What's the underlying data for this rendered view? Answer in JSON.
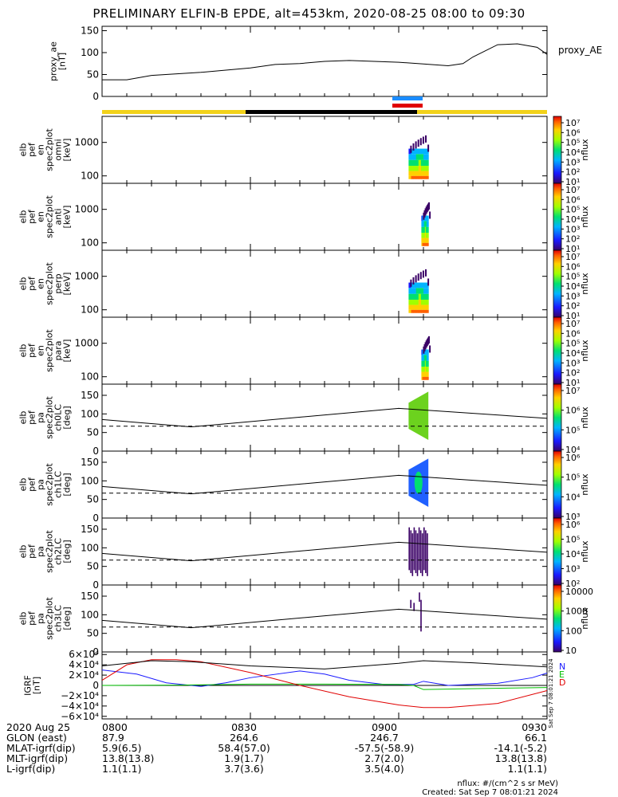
{
  "title": "PRELIMINARY ELFIN-B EPDE, alt=453km, 2020-08-25 08:00 to 09:30",
  "ae_panel": {
    "ylabel": [
      "proxy_ae",
      "[nT]"
    ],
    "yticks": [
      "0",
      "50",
      "100",
      "150"
    ],
    "legend": "proxy_AE"
  },
  "spec_panels": [
    {
      "ylabel": [
        "elb",
        "pef",
        "en",
        "spec2plot",
        "omni",
        "[keV]"
      ]
    },
    {
      "ylabel": [
        "elb",
        "pef",
        "en",
        "spec2plot",
        "anti",
        "[keV]"
      ]
    },
    {
      "ylabel": [
        "elb",
        "pef",
        "en",
        "spec2plot",
        "perp",
        "[keV]"
      ]
    },
    {
      "ylabel": [
        "elb",
        "pef",
        "en",
        "spec2plot",
        "para",
        "[keV]"
      ]
    }
  ],
  "spec_yticks": [
    "100",
    "1000"
  ],
  "lc_panels": [
    {
      "ylabel": [
        "elb",
        "pef",
        "pa",
        "spec2plot",
        "ch0LC",
        "[deg]"
      ]
    },
    {
      "ylabel": [
        "elb",
        "pef",
        "pa",
        "spec2plot",
        "ch1LC",
        "[deg]"
      ]
    },
    {
      "ylabel": [
        "elb",
        "pef",
        "pa",
        "spec2plot",
        "ch2LC",
        "[deg]"
      ]
    },
    {
      "ylabel": [
        "elb",
        "pef",
        "pa",
        "spec2plot",
        "ch3LC",
        "[deg]"
      ]
    }
  ],
  "lc_yticks": [
    "0",
    "50",
    "100",
    "150"
  ],
  "cbar_label": "nflux",
  "cbar_labels_spec": [
    "10⁷",
    "10⁶",
    "10⁵",
    "10⁴",
    "10³",
    "10²",
    "10¹"
  ],
  "cbar_labels_lc": [
    [
      "10⁷",
      "10⁶",
      "10⁵",
      "10⁴"
    ],
    [
      "10⁶",
      "10⁵",
      "10⁴",
      "10³"
    ],
    [
      "10⁶",
      "10⁵",
      "10⁴",
      "10³",
      "10²"
    ],
    [
      "10000",
      "1000",
      "100",
      "10"
    ]
  ],
  "igrf_panel": {
    "ylabel": [
      "IGRF",
      "[nT]"
    ],
    "yticks": [
      "6×10⁴",
      "4×10⁴",
      "2×10⁴",
      "0",
      "−2×10⁴",
      "−4×10⁴",
      "−6×10⁴"
    ],
    "legend": [
      "N",
      "E",
      "D"
    ],
    "side_note": "Sat Sep  7 08:01:21 2024"
  },
  "chart_data": {
    "type": "line",
    "x_time_ticks": [
      "0800",
      "0830",
      "0900",
      "0930"
    ],
    "proxy_ae": {
      "time": [
        "08:00",
        "08:05",
        "08:10",
        "08:20",
        "08:30",
        "08:35",
        "08:40",
        "08:45",
        "08:50",
        "08:55",
        "09:00",
        "09:05",
        "09:10",
        "09:13",
        "09:15",
        "09:20",
        "09:24",
        "09:28",
        "09:30"
      ],
      "values": [
        38,
        38,
        48,
        55,
        65,
        73,
        75,
        80,
        82,
        80,
        78,
        74,
        70,
        75,
        90,
        118,
        120,
        112,
        96
      ],
      "ylim": [
        0,
        160
      ]
    },
    "spectra": {
      "ylabel": "keV",
      "yrange": [
        60,
        6000
      ],
      "yscale": "log",
      "time_range": [
        "09:02",
        "09:06"
      ]
    },
    "loss_cone": {
      "ylim": [
        0,
        180
      ],
      "solid_line": {
        "time": [
          "08:00",
          "08:18",
          "09:00",
          "09:30"
        ],
        "values": [
          85,
          65,
          115,
          88
        ]
      },
      "dashed_line": {
        "value": 67
      }
    },
    "igrf": {
      "ylim": [
        -65000,
        65000
      ],
      "series": [
        {
          "name": "N",
          "color": "#1a1aff",
          "time": [
            "08:00",
            "08:07",
            "08:13",
            "08:20",
            "08:25",
            "08:30",
            "08:40",
            "08:45",
            "08:50",
            "08:57",
            "09:03",
            "09:05",
            "09:10",
            "09:20",
            "09:27",
            "09:30"
          ],
          "values": [
            30000,
            22000,
            5000,
            -2000,
            5000,
            15000,
            28000,
            22000,
            10000,
            2000,
            2000,
            8000,
            0,
            4000,
            15000,
            24000
          ]
        },
        {
          "name": "E",
          "color": "#00c000",
          "time": [
            "08:00",
            "08:15",
            "08:30",
            "08:45",
            "09:00",
            "09:03",
            "09:05",
            "09:30"
          ],
          "values": [
            0,
            500,
            2500,
            2500,
            2000,
            0,
            -8000,
            -4000
          ]
        },
        {
          "name": "D",
          "color": "#e00000",
          "time": [
            "08:00",
            "08:05",
            "08:10",
            "08:15",
            "08:20",
            "08:30",
            "08:40",
            "08:50",
            "09:00",
            "09:05",
            "09:10",
            "09:20",
            "09:30"
          ],
          "values": [
            10000,
            40000,
            50000,
            50000,
            46000,
            25000,
            0,
            -22000,
            -38000,
            -43000,
            -43000,
            -35000,
            -10000
          ]
        },
        {
          "name": "total",
          "color": "#000000",
          "time": [
            "08:00",
            "08:10",
            "08:18",
            "08:30",
            "08:45",
            "09:00",
            "09:05",
            "09:15",
            "09:30"
          ],
          "values": [
            38000,
            48000,
            46000,
            38000,
            32000,
            43000,
            48000,
            44000,
            36000
          ]
        }
      ]
    }
  },
  "footer": {
    "rows": [
      {
        "label": "2020 Aug 25",
        "vals": [
          "0800",
          "0830",
          "0900",
          "0930"
        ]
      },
      {
        "label": "GLON (east)",
        "vals": [
          "87.9",
          "264.6",
          "246.7",
          "66.1"
        ]
      },
      {
        "label": "MLAT-igrf(dip)",
        "vals": [
          "5.9(6.5)",
          "58.4(57.0)",
          "-57.5(-58.9)",
          "-14.1(-5.2)"
        ]
      },
      {
        "label": "MLT-igrf(dip)",
        "vals": [
          "13.8(13.8)",
          "1.9(1.7)",
          "2.7(2.0)",
          "13.8(13.8)"
        ]
      },
      {
        "label": "L-igrf(dip)",
        "vals": [
          "1.1(1.1)",
          "3.7(3.6)",
          "3.5(4.0)",
          "1.1(1.1)"
        ]
      }
    ],
    "units_note": "nflux: #/(cm^2 s sr MeV)",
    "created": "Created: Sat Sep  7 08:01:21 2024"
  }
}
